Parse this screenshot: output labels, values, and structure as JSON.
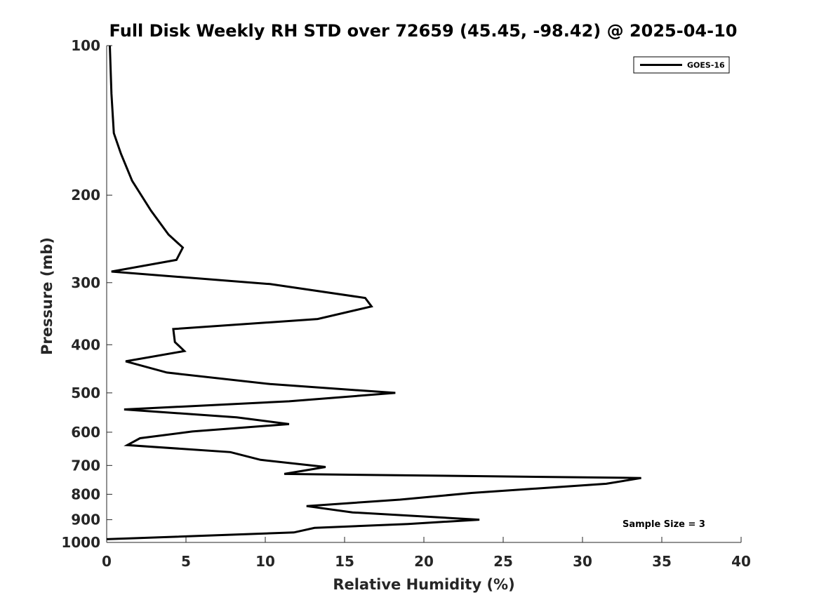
{
  "chart_data": {
    "type": "line",
    "title": "Full Disk Weekly RH STD over 72659 (45.45, -98.42) @ 2025-04-10",
    "xlabel": "Relative Humidity (%)",
    "ylabel": "Pressure (mb)",
    "xlim": [
      0,
      40
    ],
    "ylim": [
      100,
      1000
    ],
    "yscale": "log",
    "y_reversed": true,
    "xticks": [
      0,
      5,
      10,
      15,
      20,
      25,
      30,
      35,
      40
    ],
    "yticks": [
      100,
      200,
      300,
      400,
      500,
      600,
      700,
      800,
      900,
      1000
    ],
    "grid": false,
    "legend_position": "top-right",
    "series": [
      {
        "name": "GOES-16",
        "color": "#000000",
        "points": [
          [
            0.2,
            100
          ],
          [
            0.3,
            125
          ],
          [
            0.45,
            150
          ],
          [
            0.9,
            165
          ],
          [
            1.6,
            187
          ],
          [
            2.8,
            215
          ],
          [
            3.9,
            240
          ],
          [
            4.8,
            255
          ],
          [
            4.4,
            270
          ],
          [
            0.3,
            285
          ],
          [
            10.3,
            302
          ],
          [
            16.3,
            322
          ],
          [
            16.7,
            335
          ],
          [
            13.3,
            355
          ],
          [
            4.2,
            372
          ],
          [
            4.3,
            395
          ],
          [
            4.9,
            412
          ],
          [
            1.2,
            432
          ],
          [
            3.8,
            455
          ],
          [
            10.3,
            480
          ],
          [
            18.2,
            500
          ],
          [
            11.5,
            520
          ],
          [
            1.1,
            540
          ],
          [
            8.2,
            560
          ],
          [
            11.5,
            578
          ],
          [
            5.4,
            598
          ],
          [
            2.1,
            617
          ],
          [
            1.3,
            637
          ],
          [
            7.8,
            658
          ],
          [
            9.7,
            682
          ],
          [
            13.8,
            705
          ],
          [
            11.2,
            728
          ],
          [
            33.7,
            742
          ],
          [
            31.5,
            762
          ],
          [
            23.0,
            795
          ],
          [
            18.5,
            820
          ],
          [
            12.6,
            845
          ],
          [
            15.5,
            870
          ],
          [
            23.5,
            900
          ],
          [
            19.0,
            918
          ],
          [
            13.1,
            935
          ],
          [
            11.8,
            955
          ],
          [
            0.0,
            985
          ]
        ]
      }
    ],
    "annotations": [
      "Sample Size = 3"
    ]
  }
}
